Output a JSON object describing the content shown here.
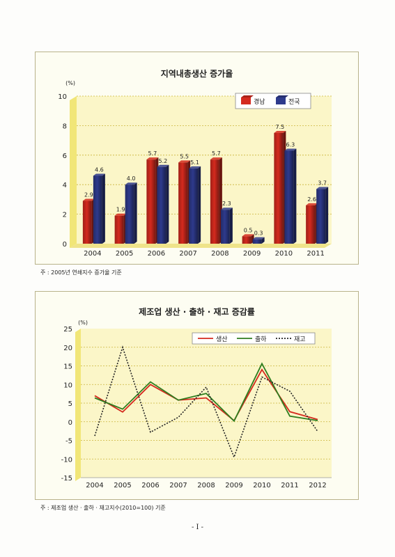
{
  "page_number": "- I -",
  "chart_data": [
    {
      "type": "bar",
      "title": "지역내총생산 증가율",
      "ylabel": "(%)",
      "xlabel": "",
      "ylim": [
        0,
        10
      ],
      "yticks": [
        0,
        2,
        4,
        6,
        8,
        10
      ],
      "grid": true,
      "legend_position": "top-right",
      "categories": [
        "2004",
        "2005",
        "2006",
        "2007",
        "2008",
        "2009",
        "2010",
        "2011"
      ],
      "series": [
        {
          "name": "경남",
          "color": "#d42a1e",
          "values": [
            2.9,
            1.9,
            5.7,
            5.5,
            5.7,
            0.5,
            7.5,
            2.6
          ],
          "labels": [
            "2.9",
            "1.9",
            "5.7",
            "5.5",
            "5.7",
            "0.5",
            "7.5",
            "2.6"
          ]
        },
        {
          "name": "전국",
          "color": "#2e3a8c",
          "values": [
            4.6,
            4.0,
            5.2,
            5.1,
            2.3,
            0.3,
            6.3,
            3.7
          ],
          "labels": [
            "4.6",
            "4.0",
            "5.2",
            "5.1",
            "2.3",
            "0.3",
            "6.3",
            "3.7"
          ]
        }
      ],
      "note": "주 : 2005년 연쇄지수 증가율 기준"
    },
    {
      "type": "line",
      "title": "제조업 생산 · 출하 · 재고 증감률",
      "ylabel": "(%)",
      "xlabel": "",
      "ylim": [
        -15,
        25
      ],
      "yticks": [
        -15,
        -10,
        -5,
        0,
        5,
        10,
        15,
        20,
        25
      ],
      "grid": true,
      "legend_position": "top-right",
      "categories": [
        "2004",
        "2005",
        "2006",
        "2007",
        "2008",
        "2009",
        "2010",
        "2011",
        "2012"
      ],
      "series": [
        {
          "name": "생산",
          "color": "#d42a1e",
          "style": "solid",
          "values": [
            7.0,
            2.6,
            10.0,
            5.8,
            6.4,
            0.3,
            14.0,
            2.7,
            0.6
          ]
        },
        {
          "name": "출하",
          "color": "#2e7d1f",
          "style": "solid",
          "values": [
            6.4,
            3.4,
            10.7,
            5.8,
            7.6,
            0.2,
            15.6,
            1.5,
            0.3
          ]
        },
        {
          "name": "재고",
          "color": "#222222",
          "style": "dotted",
          "values": [
            -3.8,
            20.0,
            -2.8,
            1.2,
            9.3,
            -9.5,
            12.0,
            8.2,
            -2.6
          ]
        }
      ],
      "note": "주 : 제조업 생산 · 출하 · 재고지수(2010=100) 기준"
    }
  ]
}
